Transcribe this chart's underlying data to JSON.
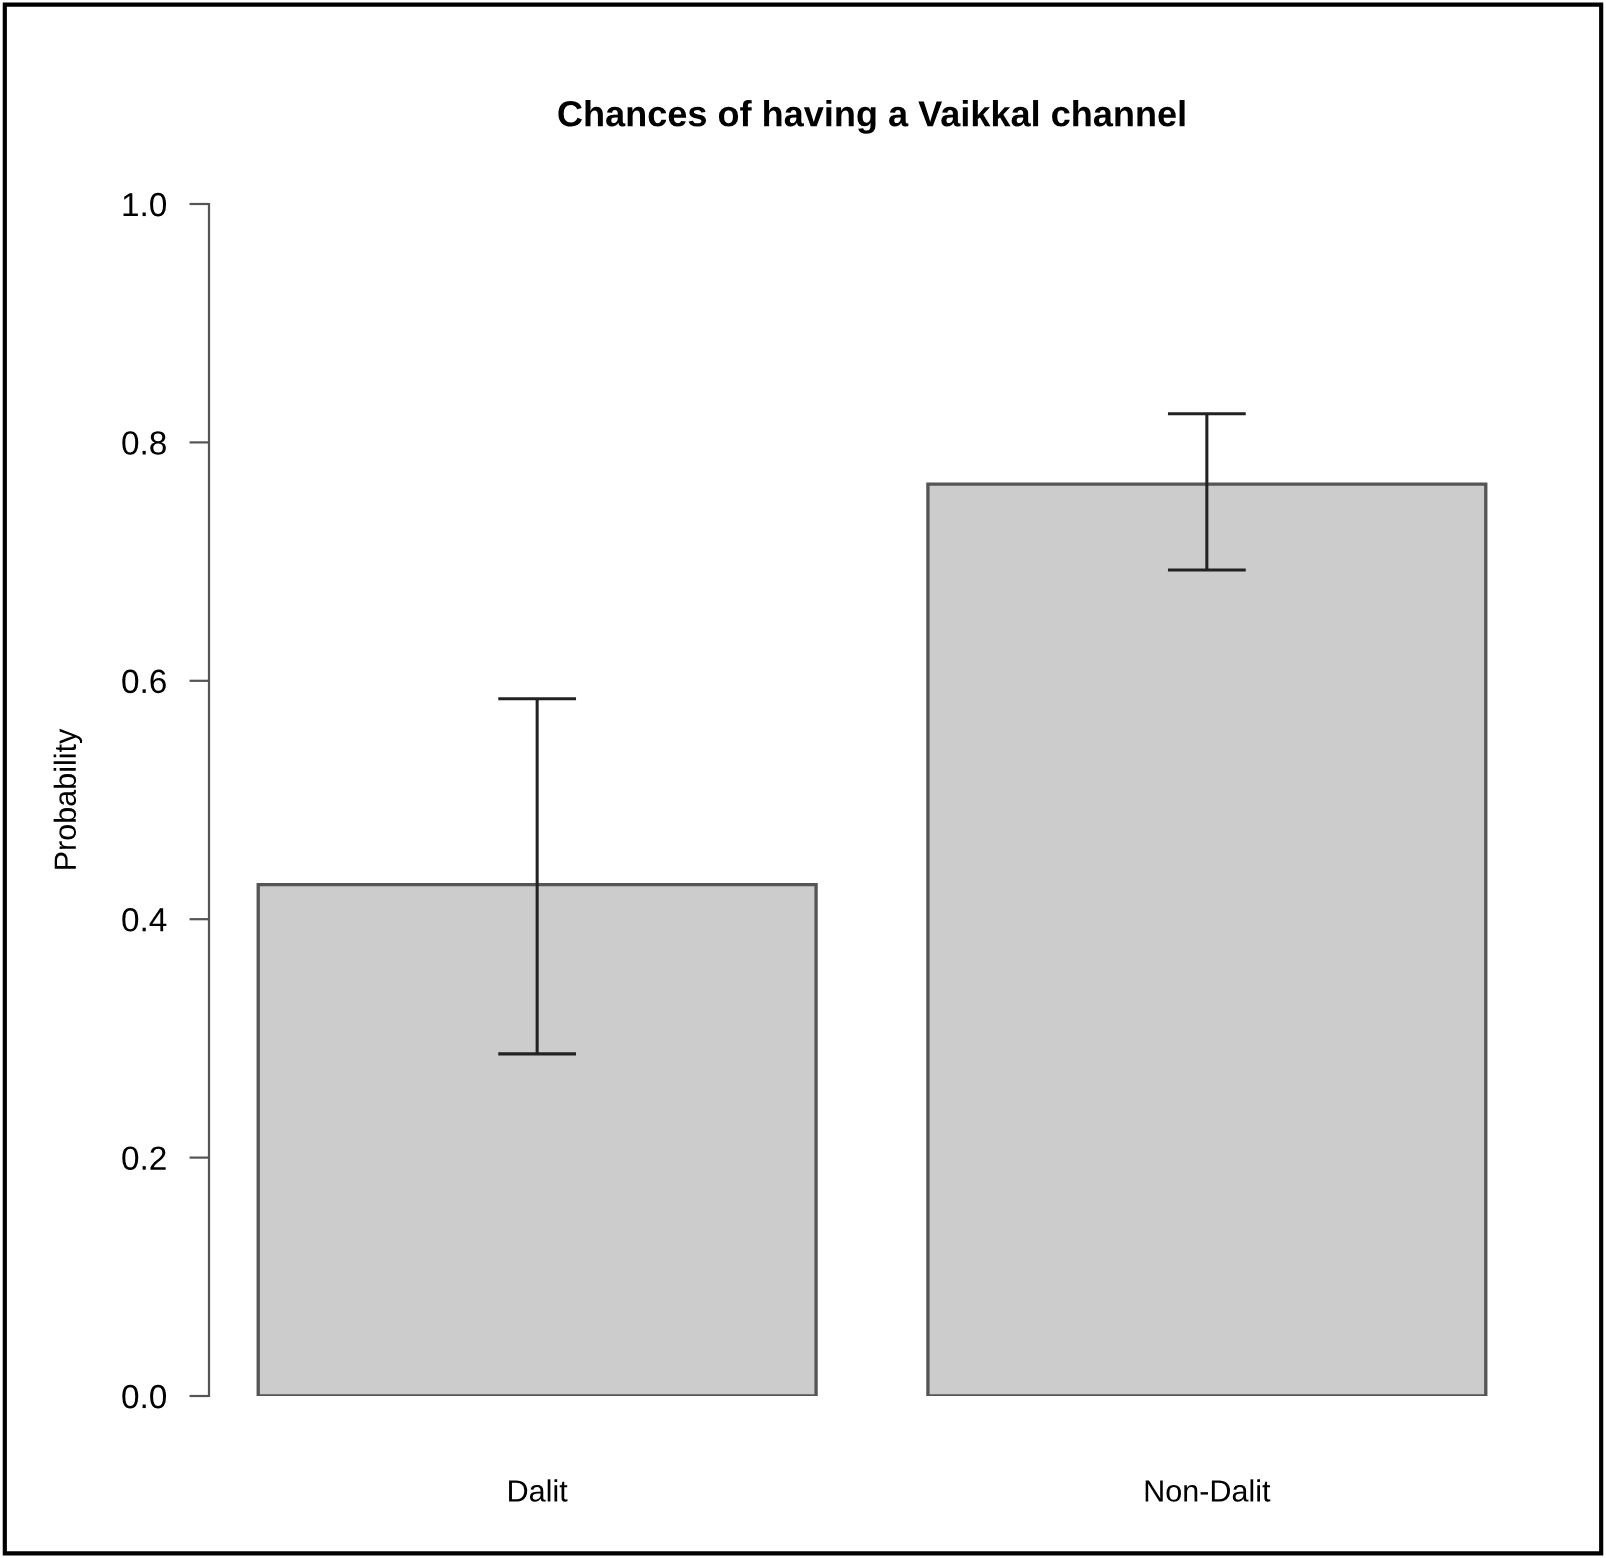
{
  "chart_data": {
    "type": "bar",
    "title": "Chances of having a Vaikkal channel",
    "ylabel": "Probability",
    "categories": [
      "Dalit",
      "Non-Dalit"
    ],
    "values": [
      0.429,
      0.765
    ],
    "errors": [
      [
        0.287,
        0.585
      ],
      [
        0.693,
        0.824
      ]
    ],
    "color": "#cccccc",
    "ylim": [
      0,
      1
    ],
    "yticks": [
      {
        "value": 0,
        "label": "0.0"
      },
      0.2,
      0.4,
      0.6,
      0.8,
      {
        "value": 1,
        "label": "1.0"
      }
    ],
    "grid": false,
    "legend": false
  }
}
